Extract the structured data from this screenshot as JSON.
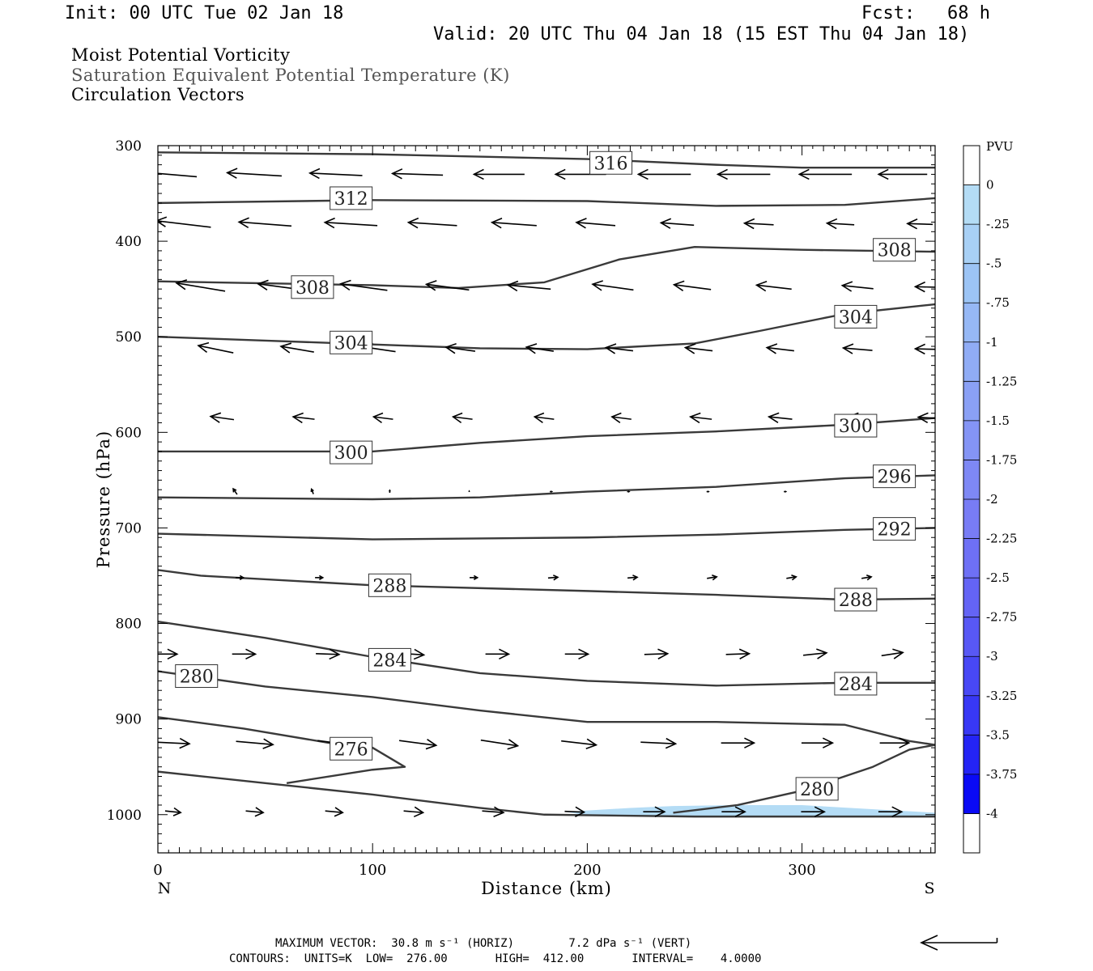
{
  "header": {
    "init": "Init: 00 UTC Tue 02 Jan 18",
    "fcst": "Fcst:   68 h",
    "valid": "Valid: 20 UTC Thu 04 Jan 18 (15 EST Thu 04 Jan 18)",
    "fields": [
      "Moist Potential Vorticity",
      "Saturation Equivalent Potential Temperature (K)",
      "Circulation Vectors"
    ]
  },
  "footer": {
    "line1": "MAXIMUM VECTOR:  30.8 m s⁻¹ (HORIZ)        7.2 dPa s⁻¹ (VERT)",
    "line2": "CONTOURS:  UNITS=K  LOW=  276.00       HIGH=  412.00       INTERVAL=    4.0000"
  },
  "colors": {
    "contour": "#3a3a3a",
    "vector": "#000000",
    "pv_fill": "#b4dcf5"
  },
  "chart_data": {
    "type": "cross-section",
    "xlabel": "Distance (km)",
    "ylabel": "Pressure (hPa)",
    "xlim": [
      0,
      362
    ],
    "ylim": [
      1040,
      300
    ],
    "x_ticks": [
      0,
      100,
      200,
      300
    ],
    "y_ticks": [
      300,
      400,
      500,
      600,
      700,
      800,
      900,
      1000
    ],
    "x_end_labels": [
      "N",
      "S"
    ],
    "colorbar": {
      "units": "PVU",
      "levels": [
        "0",
        "-.25",
        "-.5",
        "-.75",
        "-1",
        "-1.25",
        "-1.5",
        "-1.75",
        "-2",
        "-2.25",
        "-2.5",
        "-2.75",
        "-3",
        "-3.25",
        "-3.5",
        "-3.75",
        "-4"
      ],
      "colors": [
        "#ffffff",
        "#b4dcf5",
        "#a8d0f5",
        "#9cc4f5",
        "#96b8f5",
        "#90acf5",
        "#8aa0f5",
        "#8494f5",
        "#7e88f5",
        "#787cf5",
        "#6e70f5",
        "#6464f5",
        "#5858f5",
        "#4848f5",
        "#3838f5",
        "#2424f5",
        "#0a0af5"
      ]
    },
    "contours": [
      {
        "label": "316",
        "points": [
          [
            0,
            307
          ],
          [
            100,
            309
          ],
          [
            200,
            314
          ],
          [
            260,
            320
          ],
          [
            300,
            323
          ],
          [
            362,
            323
          ]
        ],
        "labels_at": [
          [
            211,
            318
          ]
        ]
      },
      {
        "label": "312",
        "points": [
          [
            0,
            360
          ],
          [
            100,
            357
          ],
          [
            200,
            358
          ],
          [
            260,
            363
          ],
          [
            320,
            362
          ],
          [
            362,
            355
          ]
        ],
        "labels_at": [
          [
            90,
            355
          ]
        ]
      },
      {
        "label": "308",
        "points": [
          [
            0,
            442
          ],
          [
            100,
            446
          ],
          [
            140,
            449
          ],
          [
            180,
            443
          ],
          [
            215,
            419
          ],
          [
            250,
            406
          ],
          [
            300,
            409
          ],
          [
            362,
            411
          ]
        ],
        "labels_at": [
          [
            72,
            448
          ],
          [
            343,
            409
          ]
        ]
      },
      {
        "label": "304",
        "points": [
          [
            0,
            500
          ],
          [
            50,
            504
          ],
          [
            100,
            508
          ],
          [
            150,
            512
          ],
          [
            200,
            513
          ],
          [
            250,
            507
          ],
          [
            280,
            494
          ],
          [
            320,
            476
          ],
          [
            362,
            466
          ]
        ],
        "labels_at": [
          [
            90,
            506
          ],
          [
            325,
            479
          ]
        ]
      },
      {
        "label": "300",
        "points": [
          [
            0,
            620
          ],
          [
            100,
            620
          ],
          [
            150,
            611
          ],
          [
            200,
            604
          ],
          [
            260,
            599
          ],
          [
            320,
            592
          ],
          [
            362,
            585
          ]
        ],
        "labels_at": [
          [
            90,
            621
          ],
          [
            325,
            593
          ]
        ]
      },
      {
        "label": "296",
        "points": [
          [
            0,
            668
          ],
          [
            100,
            670
          ],
          [
            150,
            668
          ],
          [
            200,
            662
          ],
          [
            260,
            657
          ],
          [
            320,
            648
          ],
          [
            362,
            645
          ]
        ],
        "labels_at": [
          [
            343,
            646
          ]
        ]
      },
      {
        "label": "292",
        "points": [
          [
            0,
            706
          ],
          [
            100,
            712
          ],
          [
            200,
            710
          ],
          [
            260,
            707
          ],
          [
            320,
            702
          ],
          [
            362,
            700
          ]
        ],
        "labels_at": [
          [
            343,
            701
          ]
        ]
      },
      {
        "label": "288",
        "points": [
          [
            0,
            744
          ],
          [
            20,
            750
          ],
          [
            100,
            760
          ],
          [
            200,
            766
          ],
          [
            260,
            770
          ],
          [
            320,
            775
          ],
          [
            362,
            774
          ]
        ],
        "labels_at": [
          [
            108,
            760
          ],
          [
            325,
            775
          ]
        ]
      },
      {
        "label": "284",
        "points": [
          [
            0,
            798
          ],
          [
            50,
            815
          ],
          [
            100,
            835
          ],
          [
            150,
            852
          ],
          [
            200,
            860
          ],
          [
            260,
            865
          ],
          [
            320,
            862
          ],
          [
            362,
            862
          ]
        ],
        "labels_at": [
          [
            108,
            838
          ],
          [
            325,
            863
          ]
        ]
      },
      {
        "label": "280",
        "points": [
          [
            0,
            850
          ],
          [
            50,
            866
          ],
          [
            100,
            877
          ],
          [
            150,
            891
          ],
          [
            200,
            903
          ],
          [
            260,
            903
          ],
          [
            320,
            906
          ],
          [
            350,
            923
          ],
          [
            362,
            927
          ],
          [
            350,
            932
          ],
          [
            333,
            950
          ],
          [
            300,
            975
          ],
          [
            270,
            990
          ],
          [
            240,
            998
          ]
        ],
        "labels_at": [
          [
            18,
            855
          ],
          [
            307,
            973
          ]
        ]
      },
      {
        "label": "276",
        "points": [
          [
            0,
            898
          ],
          [
            40,
            910
          ],
          [
            80,
            925
          ],
          [
            100,
            930
          ],
          [
            115,
            950
          ],
          [
            100,
            953
          ],
          [
            60,
            967
          ]
        ],
        "labels_at": [
          [
            90,
            931
          ]
        ]
      },
      {
        "label": "",
        "points": [
          [
            0,
            955
          ],
          [
            50,
            967
          ],
          [
            100,
            979
          ],
          [
            150,
            993
          ],
          [
            180,
            1000
          ],
          [
            250,
            1002
          ],
          [
            362,
            1002
          ]
        ],
        "labels_at": []
      }
    ],
    "pv_negative_region": {
      "level": "-.25",
      "points": [
        [
          190,
          997
        ],
        [
          220,
          993
        ],
        [
          240,
          991
        ],
        [
          270,
          990
        ],
        [
          300,
          990
        ],
        [
          330,
          994
        ],
        [
          362,
          998
        ],
        [
          362,
          1001
        ],
        [
          200,
          1001
        ]
      ]
    },
    "vectors": [
      {
        "p": 330,
        "x": [
          5,
          45,
          83,
          121,
          159,
          197,
          236,
          273,
          311,
          347
        ],
        "dx": [
          -29,
          -28,
          -27,
          -26,
          -26,
          -26,
          -27,
          -27,
          -27,
          -25
        ],
        "dp": [
          -6,
          -4,
          -3,
          -2,
          0,
          0,
          0,
          0,
          0,
          0
        ]
      },
      {
        "p": 382,
        "x": [
          12,
          50,
          90,
          128,
          166,
          204,
          242,
          280,
          318,
          355
        ],
        "dx": [
          -28,
          -27,
          -27,
          -25,
          -23,
          -20,
          -17,
          -15,
          -14,
          -13
        ],
        "dp": [
          -8,
          -5,
          -4,
          -4,
          -4,
          -4,
          -3,
          -2,
          -2,
          -1
        ]
      },
      {
        "p": 448,
        "x": [
          20,
          58,
          96,
          135,
          173,
          212,
          249,
          287,
          326,
          360
        ],
        "dx": [
          -25,
          -25,
          -24,
          -22,
          -22,
          -21,
          -19,
          -18,
          -16,
          -16
        ],
        "dp": [
          -10,
          -8,
          -8,
          -7,
          -5,
          -7,
          -6,
          -5,
          -4,
          -1
        ]
      },
      {
        "p": 513,
        "x": [
          27,
          65,
          103,
          141,
          178,
          215,
          252,
          290,
          326,
          360
        ],
        "dx": [
          -18,
          -17,
          -17,
          -15,
          -14,
          -14,
          -14,
          -14,
          -15,
          -16
        ],
        "dp": [
          -9,
          -7,
          -6,
          -5,
          -5,
          -4,
          -4,
          -4,
          -3,
          -1
        ]
      },
      {
        "p": 585,
        "x": [
          30,
          68,
          105,
          142,
          180,
          216,
          253,
          290,
          327,
          360
        ],
        "dx": [
          -12,
          -11,
          -10,
          -10,
          -10,
          -10,
          -11,
          -12,
          -12,
          -13
        ],
        "dp": [
          -4,
          -3,
          -3,
          -3,
          -3,
          -3,
          -3,
          -3,
          -3,
          -2
        ]
      },
      {
        "p": 662,
        "x": [
          36,
          72,
          108,
          145,
          183,
          219,
          256,
          292,
          328,
          362
        ],
        "dx": [
          -2,
          -1,
          0,
          0,
          1,
          1,
          1,
          1,
          0,
          0
        ],
        "dp": [
          -7,
          -6,
          -3,
          -1,
          0,
          0,
          0,
          0,
          0,
          0
        ]
      },
      {
        "p": 752,
        "x": [
          38,
          75,
          110,
          147,
          184,
          221,
          258,
          295,
          330,
          362
        ],
        "dx": [
          4,
          4,
          4,
          4,
          5,
          5,
          5,
          5,
          5,
          4
        ],
        "dp": [
          0,
          0,
          1,
          0,
          -1,
          -1,
          -2,
          -2,
          -2,
          -1
        ]
      },
      {
        "p": 832,
        "x": [
          4,
          40,
          79,
          118,
          158,
          195,
          232,
          270,
          306,
          342
        ],
        "dx": [
          11,
          12,
          12,
          13,
          12,
          12,
          12,
          12,
          12,
          11
        ],
        "dp": [
          0,
          0,
          1,
          2,
          0,
          0,
          -1,
          -1,
          -3,
          -4
        ]
      },
      {
        "p": 925,
        "x": [
          7,
          45,
          83,
          121,
          159,
          196,
          233,
          270,
          307,
          343
        ],
        "dx": [
          17,
          19,
          19,
          19,
          19,
          18,
          18,
          17,
          16,
          15
        ],
        "dp": [
          2,
          4,
          6,
          6,
          7,
          5,
          2,
          0,
          0,
          0
        ]
      },
      {
        "p": 997,
        "x": [
          7,
          45,
          82,
          119,
          156,
          194,
          231,
          268,
          305,
          341
        ],
        "dx": [
          8,
          9,
          9,
          10,
          11,
          10,
          11,
          12,
          12,
          12
        ],
        "dp": [
          2,
          2,
          2,
          2,
          2,
          1,
          0,
          0,
          0,
          0
        ]
      }
    ],
    "reference_vector": {
      "dx": -30.8
    }
  }
}
